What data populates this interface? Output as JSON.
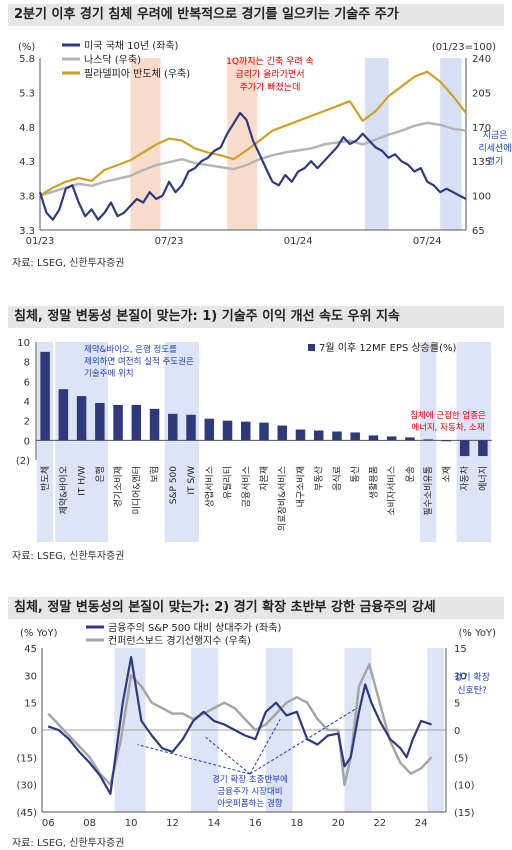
{
  "chart_data": [
    {
      "type": "line",
      "title": "2분기 이후 경기 침체 우려에 반복적으로 경기를 일으키는 기술주 주가",
      "y_left_unit": "(%)",
      "y_right_unit": "(01/23=100)",
      "ylim_left": [
        3.3,
        5.8
      ],
      "ylim_right": [
        65,
        240
      ],
      "yticks_left": [
        "5.8",
        "5.3",
        "4.8",
        "4.3",
        "3.8",
        "3.3"
      ],
      "yticks_right": [
        "240",
        "205",
        "170",
        "135",
        "100",
        "65"
      ],
      "x_ticks": [
        "01/23",
        "07/23",
        "01/24",
        "07/24"
      ],
      "series": [
        {
          "name": "미국 국채 10년 (좌축)",
          "color": "#2e3a7c",
          "axis": "left",
          "x": [
            0,
            0.3,
            0.6,
            0.9,
            1.2,
            1.5,
            1.8,
            2.1,
            2.4,
            2.7,
            3.0,
            3.3,
            3.6,
            3.9,
            4.2,
            4.5,
            4.8,
            5.1,
            5.4,
            5.7,
            6.0,
            6.3,
            6.6,
            6.9,
            7.2,
            7.5,
            7.8,
            8.1,
            8.4,
            8.7,
            9.0,
            9.3,
            9.6,
            9.9,
            10.2,
            10.5,
            10.8,
            11.1,
            11.4,
            11.7,
            12.0,
            12.3,
            12.6,
            12.9,
            13.2,
            13.5,
            13.8,
            14.1,
            14.4,
            14.7,
            15.0,
            15.3,
            15.6,
            15.9,
            16.2,
            16.5,
            16.8,
            17.1,
            17.4,
            17.7,
            18.0,
            18.3,
            18.6,
            18.9,
            19.2,
            19.5,
            19.8
          ],
          "values": [
            3.85,
            3.55,
            3.45,
            3.6,
            3.9,
            3.95,
            3.7,
            3.5,
            3.6,
            3.45,
            3.55,
            3.7,
            3.5,
            3.55,
            3.65,
            3.75,
            3.7,
            3.85,
            3.75,
            3.8,
            4.0,
            3.85,
            3.95,
            4.15,
            4.2,
            4.3,
            4.35,
            4.45,
            4.5,
            4.7,
            4.85,
            5.0,
            4.9,
            4.6,
            4.4,
            4.2,
            4.0,
            3.95,
            4.1,
            4.0,
            4.15,
            4.2,
            4.3,
            4.2,
            4.3,
            4.4,
            4.5,
            4.65,
            4.55,
            4.6,
            4.7,
            4.6,
            4.5,
            4.45,
            4.35,
            4.4,
            4.3,
            4.25,
            4.15,
            4.2,
            4.0,
            3.95,
            3.85,
            3.9,
            3.85,
            3.8,
            3.75
          ]
        },
        {
          "name": "나스닥 (우축)",
          "color": "#b5b5b5",
          "axis": "right",
          "x": [
            0,
            0.6,
            1.2,
            1.8,
            2.4,
            3.0,
            3.6,
            4.2,
            4.8,
            5.4,
            6.0,
            6.6,
            7.2,
            7.8,
            8.4,
            9.0,
            9.6,
            10.2,
            10.8,
            11.4,
            12.0,
            12.6,
            13.2,
            13.8,
            14.4,
            15.0,
            15.6,
            16.2,
            16.8,
            17.4,
            18.0,
            18.6,
            19.2,
            19.8
          ],
          "values": [
            100,
            104,
            108,
            112,
            110,
            114,
            117,
            120,
            126,
            131,
            134,
            137,
            133,
            131,
            129,
            127,
            131,
            137,
            141,
            144,
            146,
            148,
            152,
            154,
            156,
            152,
            157,
            162,
            166,
            171,
            174,
            172,
            168,
            166
          ]
        },
        {
          "name": "필라델피아 반도체 (우축)",
          "color": "#c9a227",
          "axis": "right",
          "x": [
            0,
            0.6,
            1.2,
            1.8,
            2.4,
            3.0,
            3.6,
            4.2,
            4.8,
            5.4,
            6.0,
            6.6,
            7.2,
            7.8,
            8.4,
            9.0,
            9.6,
            10.2,
            10.8,
            11.4,
            12.0,
            12.6,
            13.2,
            13.8,
            14.4,
            15.0,
            15.6,
            16.2,
            16.8,
            17.4,
            18.0,
            18.6,
            19.2,
            19.8
          ],
          "values": [
            100,
            108,
            114,
            118,
            115,
            126,
            131,
            136,
            144,
            152,
            158,
            156,
            148,
            144,
            141,
            137,
            146,
            156,
            166,
            171,
            176,
            181,
            186,
            191,
            196,
            176,
            186,
            201,
            211,
            221,
            226,
            216,
            201,
            184
          ]
        }
      ],
      "annotation": [
        "1Q까지는 긴축 우려 속",
        "금리가 올라가면서",
        "주가가 빠졌는데"
      ],
      "annotation_right": [
        "지금은",
        "리세션에",
        "경기"
      ]
    },
    {
      "type": "bar",
      "title": "침체, 정말 변동성 본질이 맞는가: 1) 기술주 이익 개선 속도 우위 지속",
      "ylim": [
        -2,
        10
      ],
      "yticks": [
        "10",
        "8",
        "6",
        "4",
        "2",
        "0",
        "(2)"
      ],
      "series_name": "7월 이후 12MF EPS 상승률(%)",
      "color": "#2e3a7c",
      "categories": [
        "반도체",
        "제약&바이오",
        "IT H/W",
        "은행",
        "경기소비재",
        "미디어&엔터",
        "보험",
        "S&P 500",
        "IT S/W",
        "상업서비스",
        "유틸리티",
        "금융서비스",
        "자본재",
        "의료장비&서비스",
        "내구소비재",
        "부동산",
        "음식료",
        "통신",
        "생활용품",
        "소비자서비스",
        "운송",
        "필수소비유통",
        "소재",
        "자동차",
        "에너지"
      ],
      "values": [
        9.0,
        5.2,
        4.5,
        3.8,
        3.6,
        3.6,
        3.2,
        2.7,
        2.6,
        2.2,
        2.0,
        1.9,
        1.8,
        1.5,
        1.1,
        1.0,
        0.9,
        0.8,
        0.5,
        0.4,
        0.3,
        0.1,
        -0.1,
        -1.6,
        -1.6
      ],
      "annotation_left": [
        "제약&바이오, 은행 정도를",
        "제외하면 여전히 실적 주도권은",
        "기술주에 위치"
      ],
      "annotation_right": [
        "침체에 근접한 업종은",
        "에너지, 자동차, 소재"
      ]
    },
    {
      "type": "line",
      "title": "침체, 정말 변동성의 본질이 맞는가: 2) 경기 확장 초반부 강한 금융주의 강세",
      "y_left_unit": "(% YoY)",
      "y_right_unit": "(% YoY)",
      "ylim_left": [
        -45,
        45
      ],
      "ylim_right": [
        -15,
        15
      ],
      "yticks_left": [
        "45",
        "30",
        "15",
        "0",
        "(15)",
        "(30)",
        "(45)"
      ],
      "yticks_right": [
        "15",
        "10",
        "5",
        "0",
        "(5)",
        "(10)",
        "(15)"
      ],
      "x_ticks": [
        "06",
        "08",
        "10",
        "12",
        "14",
        "16",
        "18",
        "20",
        "22",
        "24"
      ],
      "series": [
        {
          "name": "금융주의 S&P 500 대비 상대주가 (좌축)",
          "color": "#2e3a7c",
          "axis": "left",
          "x": [
            2006.0,
            2006.5,
            2007.0,
            2007.5,
            2008.0,
            2008.5,
            2009.0,
            2009.3,
            2009.6,
            2010.0,
            2010.5,
            2011.0,
            2011.5,
            2012.0,
            2012.5,
            2013.0,
            2013.5,
            2014.0,
            2014.5,
            2015.0,
            2015.5,
            2016.0,
            2016.5,
            2017.0,
            2017.5,
            2018.0,
            2018.5,
            2019.0,
            2019.5,
            2020.0,
            2020.3,
            2020.6,
            2021.0,
            2021.3,
            2021.6,
            2022.0,
            2022.5,
            2023.0,
            2023.3,
            2023.6,
            2024.0,
            2024.5
          ],
          "values": [
            2,
            0,
            -5,
            -12,
            -18,
            -25,
            -35,
            -10,
            15,
            40,
            5,
            -3,
            -10,
            -12,
            -5,
            5,
            10,
            5,
            3,
            0,
            -3,
            -5,
            10,
            15,
            8,
            10,
            -5,
            -8,
            -3,
            -2,
            -20,
            -15,
            10,
            25,
            15,
            5,
            -5,
            -10,
            -15,
            -5,
            5,
            3
          ]
        },
        {
          "name": "컨퍼런스보드 경기선행지수 (우축)",
          "color": "#a6a6a6",
          "axis": "right",
          "x": [
            2006.0,
            2006.5,
            2007.0,
            2007.5,
            2008.0,
            2008.5,
            2009.0,
            2009.5,
            2010.0,
            2010.5,
            2011.0,
            2011.5,
            2012.0,
            2012.5,
            2013.0,
            2013.5,
            2014.0,
            2014.5,
            2015.0,
            2015.5,
            2016.0,
            2016.5,
            2017.0,
            2017.5,
            2018.0,
            2018.5,
            2019.0,
            2019.5,
            2020.0,
            2020.3,
            2020.6,
            2021.0,
            2021.5,
            2022.0,
            2022.5,
            2023.0,
            2023.5,
            2024.0,
            2024.5
          ],
          "values": [
            3,
            1,
            -1,
            -3,
            -5,
            -8,
            -10,
            -2,
            10,
            8,
            5,
            4,
            3,
            3,
            2,
            3,
            4,
            5,
            4,
            2,
            0,
            1,
            3,
            5,
            6,
            5,
            2,
            0,
            0,
            -10,
            -5,
            8,
            12,
            5,
            -2,
            -6,
            -8,
            -7,
            -5
          ]
        }
      ],
      "annotation_top": [
        "경기 확장",
        "신호탄?"
      ],
      "annotation_bottom": [
        "경기 확장 초중반부에",
        "금융주가 시장대비",
        "아웃퍼폼하는 경향"
      ]
    }
  ],
  "source_text": "자료: LSEG, 신한투자증권"
}
